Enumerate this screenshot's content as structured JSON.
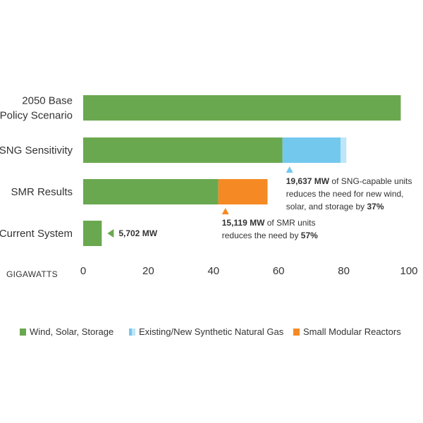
{
  "chart_data": {
    "type": "bar",
    "orientation": "horizontal",
    "stacked": true,
    "categories": [
      [
        "2050 Base",
        "Policy Scenario"
      ],
      [
        "SNG Sensitivity"
      ],
      [
        "SMR Results"
      ],
      [
        "Current System"
      ]
    ],
    "series": [
      {
        "name": "Wind, Solar, Storage",
        "color": "#6aa84f",
        "values": [
          97.5,
          61.2,
          41.5,
          5.7
        ]
      },
      {
        "name": "Existing/New Synthetic Natural Gas",
        "color": "#73c8ee",
        "color_light": "#bde6f8",
        "values": [
          0,
          19.6,
          0,
          0
        ],
        "solid_part": [
          0,
          17.8,
          0,
          0
        ]
      },
      {
        "name": "Small Modular Reactors",
        "color": "#f58a25",
        "values": [
          0,
          0,
          15.1,
          0
        ]
      }
    ],
    "xlabel": "GIGAWATTS",
    "xlim": [
      0,
      100
    ],
    "xticks": [
      "0",
      "20",
      "40",
      "60",
      "80",
      "100"
    ],
    "grid": false,
    "legend_position": "bottom",
    "annotations": [
      {
        "category_index": 3,
        "marker": "left-triangle",
        "marker_color": "#6aa84f",
        "lines": [
          [
            {
              "text": "5,702 MW",
              "bold": true
            }
          ]
        ]
      },
      {
        "category_index": 1,
        "marker": "up-triangle",
        "marker_color": "#73c8ee",
        "lines": [
          [
            {
              "text": "19,637 MW",
              "bold": true
            },
            {
              "text": " of SNG-capable units",
              "bold": false
            }
          ],
          [
            {
              "text": "reduces the need for new wind,",
              "bold": false
            }
          ],
          [
            {
              "text": "solar, and storage by ",
              "bold": false
            },
            {
              "text": "37%",
              "bold": true
            }
          ]
        ]
      },
      {
        "category_index": 2,
        "marker": "up-triangle",
        "marker_color": "#f58a25",
        "lines": [
          [
            {
              "text": "15,119 MW",
              "bold": true
            },
            {
              "text": " of SMR units",
              "bold": false
            }
          ],
          [
            {
              "text": "reduces the need by ",
              "bold": false
            },
            {
              "text": "57%",
              "bold": true
            }
          ]
        ]
      }
    ]
  }
}
